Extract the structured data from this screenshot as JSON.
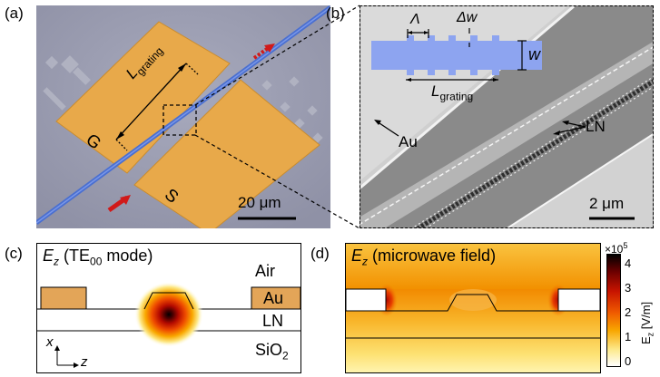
{
  "panel_a": {
    "tag": "(a)",
    "l_base": "L",
    "l_sub": "grating",
    "g_label": "G",
    "s_label": "S",
    "scale": "20 μm"
  },
  "panel_b": {
    "tag": "(b)",
    "lambda": "Λ",
    "dw": "Δw",
    "w": "w",
    "l_base": "L",
    "l_sub": "grating",
    "au": "Au",
    "ln": "LN",
    "scale": "2 μm"
  },
  "panel_c": {
    "tag": "(c)",
    "title_e": "E",
    "title_sub": "z",
    "title_mode_pre": "(TE",
    "title_mode_sub": "00",
    "title_mode_post": " mode)",
    "air": "Air",
    "au": "Au",
    "ln": "LN",
    "sio2_base": "SiO",
    "sio2_sub": "2",
    "axis_x": "x",
    "axis_z": "z"
  },
  "panel_d": {
    "tag": "(d)",
    "title_e": "E",
    "title_sub": "z",
    "title_rest": "(microwave field)"
  },
  "colorbar": {
    "exponent_base": "×10",
    "exponent_power": "5",
    "ticks": [
      "4",
      "3",
      "2",
      "1",
      "0"
    ],
    "label_e": "E",
    "label_sub": "z",
    "label_unit": "[V/m]",
    "colors": [
      "#000000",
      "#7a0000",
      "#d11a00",
      "#f26a00",
      "#f9b300",
      "#fdf0a0",
      "#ffffff"
    ]
  }
}
